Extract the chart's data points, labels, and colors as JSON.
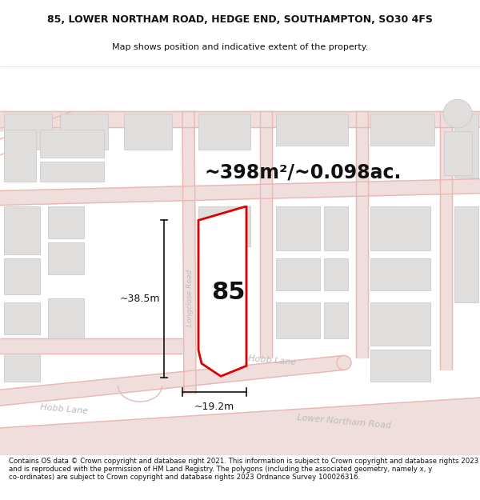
{
  "title_line1": "85, LOWER NORTHAM ROAD, HEDGE END, SOUTHAMPTON, SO30 4FS",
  "title_line2": "Map shows position and indicative extent of the property.",
  "area_text": "~398m²/~0.098ac.",
  "label_number": "85",
  "dim_height": "~38.5m",
  "dim_width": "~19.2m",
  "road_label_hobb_right": "Hobb Lane",
  "road_label_lower": "Lower Northam Road",
  "road_label_hobb_left": "Hobb Lane",
  "road_label_longclose": "Longclose Road",
  "footer_text": "Contains OS data © Crown copyright and database right 2021. This information is subject to Crown copyright and database rights 2023 and is reproduced with the permission of HM Land Registry. The polygons (including the associated geometry, namely x, y co-ordinates) are subject to Crown copyright and database rights 2023 Ordnance Survey 100026316.",
  "map_bg": "#f7f5f2",
  "road_line_color": "#e8b8b5",
  "road_fill_color": "#f0dedd",
  "building_fill": "#e0dedd",
  "building_edge": "#c8c5c3",
  "red_poly_color": "#dd0000",
  "black_color": "#111111",
  "road_text_color": "#bbbbbb",
  "footer_bg": "#ffffff",
  "title_fontsize": 9.0,
  "subtitle_fontsize": 8.0,
  "area_fontsize": 17,
  "number_fontsize": 22,
  "dim_fontsize": 9,
  "road_label_fontsize": 8
}
